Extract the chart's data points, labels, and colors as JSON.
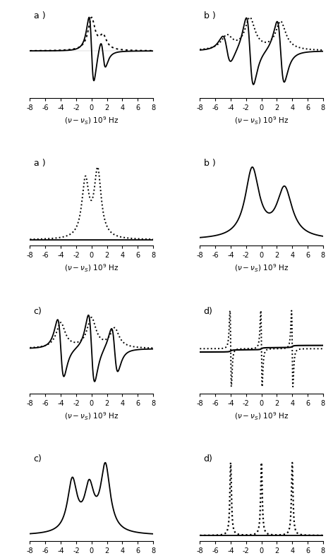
{
  "figsize": [
    4.72,
    7.91
  ],
  "dpi": 100,
  "panel_labels_row0": [
    "a )",
    "b )"
  ],
  "panel_labels_row1": [
    "a )",
    "b )"
  ],
  "panel_labels_row2": [
    "c)",
    "d)"
  ],
  "panel_labels_row3": [
    "c)",
    "d)"
  ]
}
